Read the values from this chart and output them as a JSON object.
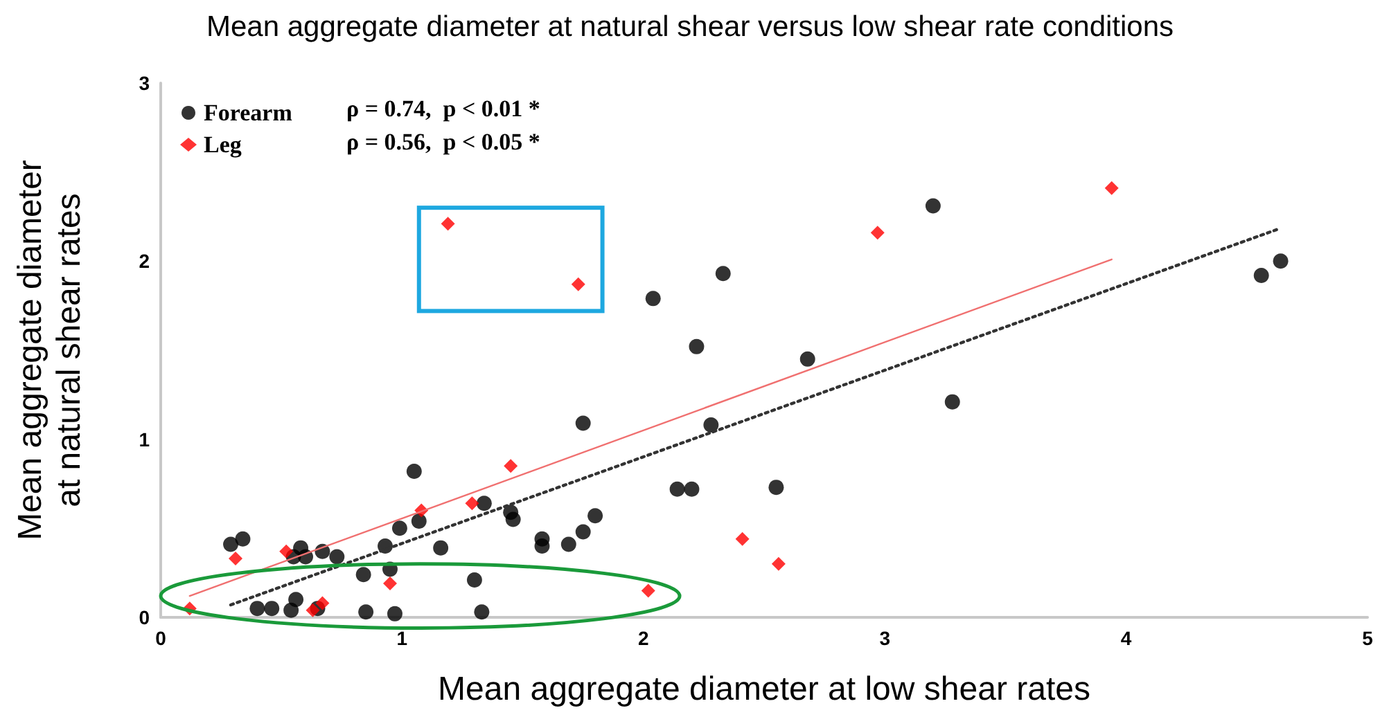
{
  "chart_data": {
    "type": "scatter",
    "title": "Mean aggregate diameter at natural shear versus low shear rate conditions",
    "xlabel": "Mean aggregate diameter at low shear rates",
    "ylabel": "Mean aggregate diameter\nat natural shear rates",
    "xlim": [
      0,
      5
    ],
    "xticks": [
      0,
      1,
      2,
      3,
      4,
      5
    ],
    "ylim": [
      0,
      3
    ],
    "yticks": [
      0,
      1,
      2,
      3
    ],
    "grid": false,
    "legend": "top left",
    "annotations": [
      "ρ = 0.74,  p < 0.01 *",
      "ρ = 0.56,  p < 0.05 *"
    ],
    "series": [
      {
        "name": "Forearm",
        "marker": "circle",
        "color": "#000000",
        "x": [
          0.29,
          0.34,
          0.58,
          0.55,
          0.6,
          0.67,
          0.73,
          0.84,
          0.93,
          0.95,
          0.99,
          1.05,
          1.07,
          1.16,
          1.3,
          1.34,
          1.45,
          1.46,
          1.58,
          1.58,
          0.4,
          0.46,
          0.54,
          0.56,
          0.65,
          0.85,
          0.97,
          1.33,
          1.69,
          1.75,
          1.8,
          1.75,
          2.28,
          2.14,
          2.2,
          2.55,
          2.04,
          2.22,
          2.33,
          2.68,
          3.2,
          3.28,
          4.56,
          4.64
        ],
        "values": [
          0.41,
          0.44,
          0.39,
          0.34,
          0.34,
          0.37,
          0.34,
          0.24,
          0.4,
          0.27,
          0.5,
          0.82,
          0.54,
          0.39,
          0.21,
          0.64,
          0.59,
          0.55,
          0.44,
          0.4,
          0.05,
          0.05,
          0.04,
          0.1,
          0.05,
          0.03,
          0.02,
          0.03,
          0.41,
          0.48,
          0.57,
          1.09,
          1.08,
          0.72,
          0.72,
          0.73,
          1.79,
          1.52,
          1.93,
          1.45,
          2.31,
          1.21,
          1.92,
          2.0
        ]
      },
      {
        "name": "Leg",
        "marker": "diamond",
        "color": "#ff0000",
        "x": [
          0.12,
          0.31,
          0.52,
          0.63,
          0.67,
          0.95,
          1.08,
          1.29,
          1.45,
          2.02,
          2.41,
          2.56,
          1.19,
          1.73,
          2.97,
          3.94
        ],
        "values": [
          0.05,
          0.33,
          0.37,
          0.04,
          0.08,
          0.19,
          0.6,
          0.64,
          0.85,
          0.15,
          0.44,
          0.3,
          2.21,
          1.87,
          2.16,
          2.41
        ]
      },
      {
        "type": "line",
        "marker": "none",
        "line_style": "solid",
        "color": "#f07070",
        "x": [
          0.12,
          3.94
        ],
        "values": [
          0.12,
          2.01
        ]
      },
      {
        "type": "line",
        "marker": "none",
        "line_style": "dotted",
        "color": "#333333",
        "x": [
          0.29,
          4.63
        ],
        "values": [
          0.07,
          2.18
        ]
      }
    ]
  }
}
